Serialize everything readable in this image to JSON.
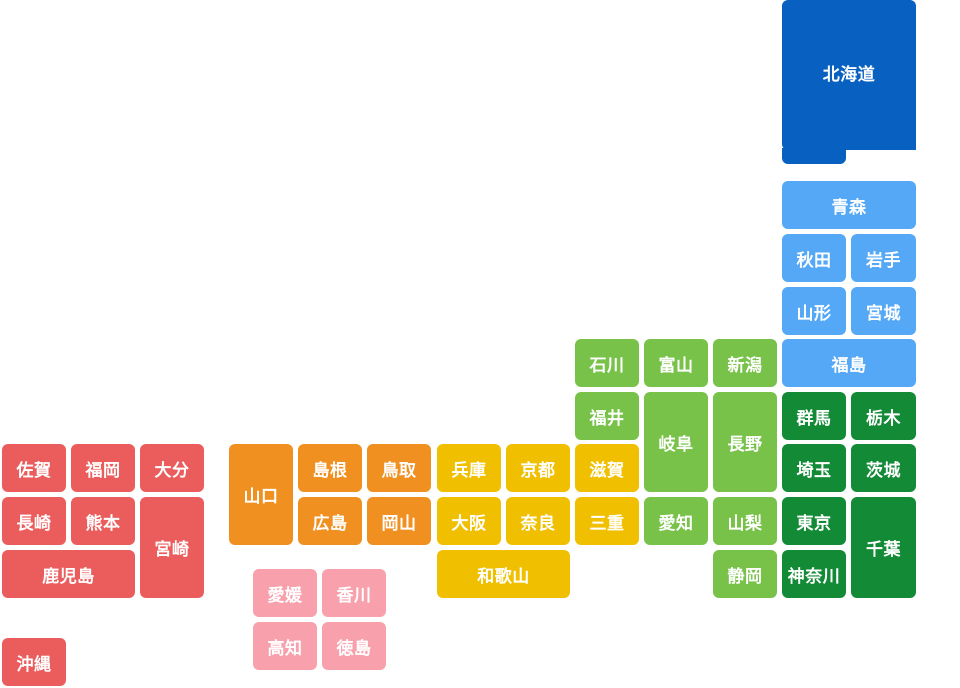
{
  "colors": {
    "hokkaido": "#0860c0",
    "tohoku": "#54a8f5",
    "kanto": "#138a36",
    "chubu": "#78c24a",
    "kinki": "#f0c000",
    "chugoku": "#f09020",
    "shikoku": "#f8a0ac",
    "kyushu": "#ea5d5c",
    "text": "#ffffff"
  },
  "prefectures": {
    "hokkaido": "北海道",
    "aomori": "青森",
    "akita": "秋田",
    "iwate": "岩手",
    "yamagata": "山形",
    "miyagi": "宮城",
    "fukushima": "福島",
    "gunma": "群馬",
    "tochigi": "栃木",
    "saitama": "埼玉",
    "ibaraki": "茨城",
    "tokyo": "東京",
    "chiba": "千葉",
    "kanagawa": "神奈川",
    "ishikawa": "石川",
    "toyama": "富山",
    "niigata": "新潟",
    "fukui": "福井",
    "gifu": "岐阜",
    "nagano": "長野",
    "aichi": "愛知",
    "yamanashi": "山梨",
    "shizuoka": "静岡",
    "shiga": "滋賀",
    "kyoto": "京都",
    "hyogo": "兵庫",
    "osaka": "大阪",
    "nara": "奈良",
    "mie": "三重",
    "wakayama": "和歌山",
    "tottori": "鳥取",
    "shimane": "島根",
    "okayama": "岡山",
    "hiroshima": "広島",
    "yamaguchi": "山口",
    "ehime": "愛媛",
    "kagawa": "香川",
    "kochi": "高知",
    "tokushima": "徳島",
    "fukuoka": "福岡",
    "saga": "佐賀",
    "nagasaki": "長崎",
    "kumamoto": "熊本",
    "oita": "大分",
    "miyazaki": "宮崎",
    "kagoshima": "鹿児島",
    "okinawa": "沖縄"
  }
}
